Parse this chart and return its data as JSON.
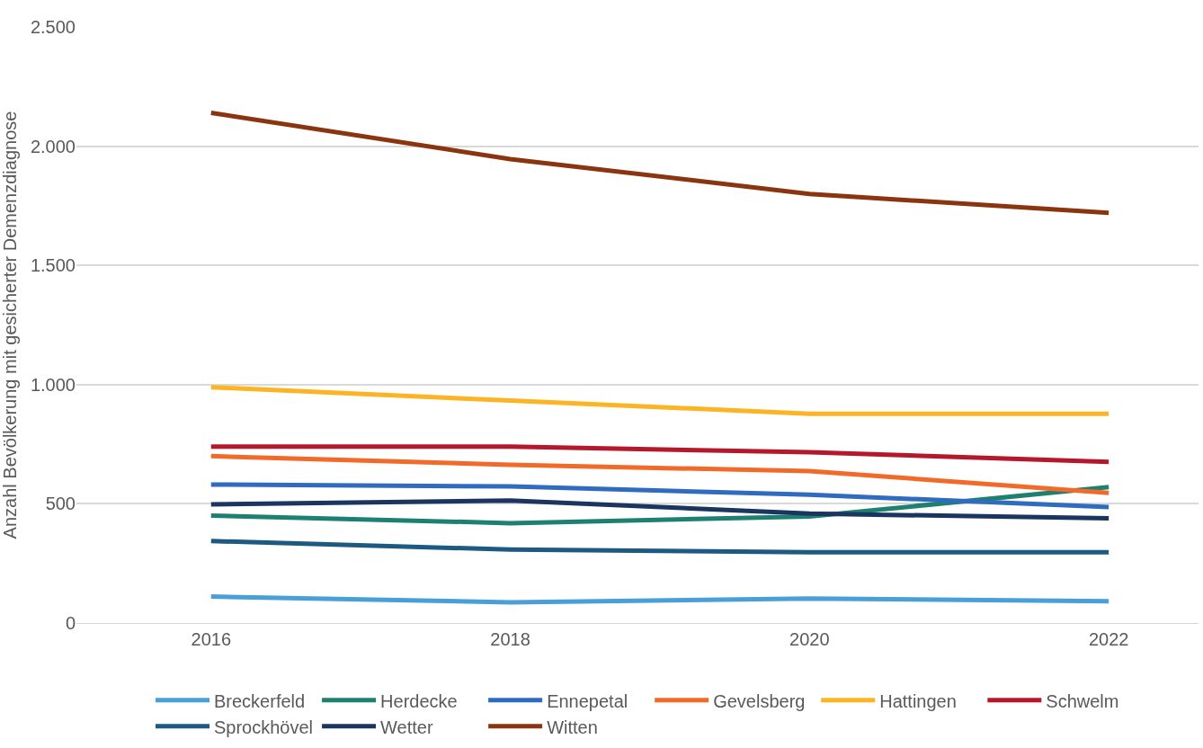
{
  "chart_data": {
    "type": "line",
    "ylabel": "Anzahl Bevölkerung mit gesicherter Demenzdiagnose",
    "x": [
      2016,
      2018,
      2020,
      2022
    ],
    "xlim": [
      2015.1,
      2022.6
    ],
    "xticks": [
      2016,
      2018,
      2020,
      2022
    ],
    "ylim": [
      0,
      2500
    ],
    "yticks": [
      0,
      500,
      {
        "value": 1000,
        "label": "1.000"
      },
      {
        "value": 1500,
        "label": "1.500"
      },
      {
        "value": 2000,
        "label": "2.000"
      },
      {
        "value": 2500,
        "label": "2.500"
      }
    ],
    "grid": "y",
    "legend": "bottom",
    "marker": "none",
    "line_style": "solid",
    "series": [
      {
        "name": "Breckerfeld",
        "color": "#4a9fd8",
        "values": [
          111,
          87,
          103,
          91
        ]
      },
      {
        "name": "Herdecke",
        "color": "#1e8070",
        "values": [
          451,
          419,
          447,
          570
        ]
      },
      {
        "name": "Ennepetal",
        "color": "#2f6bbf",
        "values": [
          581,
          573,
          538,
          486
        ]
      },
      {
        "name": "Gevelsberg",
        "color": "#f26a2a",
        "values": [
          700,
          664,
          637,
          546
        ]
      },
      {
        "name": "Hattingen",
        "color": "#fbb424",
        "values": [
          989,
          933,
          878,
          878
        ]
      },
      {
        "name": "Schwelm",
        "color": "#b5182b",
        "values": [
          740,
          740,
          716,
          676
        ]
      },
      {
        "name": "Sprockhövel",
        "color": "#1d5a82",
        "values": [
          344,
          308,
          297,
          297
        ]
      },
      {
        "name": "Wetter",
        "color": "#1a3560",
        "values": [
          498,
          514,
          459,
          439
        ]
      },
      {
        "name": "Witten",
        "color": "#8b3510",
        "values": [
          2140,
          1946,
          1800,
          1720
        ]
      }
    ]
  }
}
